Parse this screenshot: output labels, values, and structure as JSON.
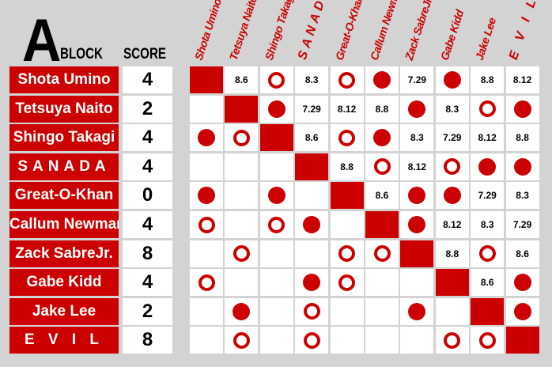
{
  "header": {
    "block_letter": "A",
    "block_label": "BLOCK",
    "score_label": "SCORE"
  },
  "colors": {
    "accent": "#cc0000",
    "background": "#d3d3d3"
  },
  "symbols": {
    "open-circle": "○",
    "filled-circle": "●",
    "diagonal": "■"
  },
  "wrestlers": [
    {
      "name": "Shota Umino",
      "score": "4"
    },
    {
      "name": "Tetsuya Naito",
      "score": "2"
    },
    {
      "name": "Shingo Takagi",
      "score": "4"
    },
    {
      "name": "SANADA",
      "score": "4"
    },
    {
      "name": "Great-O-Khan",
      "score": "0"
    },
    {
      "name": "Callum Newman",
      "score": "4"
    },
    {
      "name": "Zack SabreJr.",
      "score": "8"
    },
    {
      "name": "Gabe Kidd",
      "score": "4"
    },
    {
      "name": "Jake Lee",
      "score": "2"
    },
    {
      "name": "E V I L",
      "score": "8"
    }
  ],
  "grid": [
    [
      "■",
      "8.6",
      "○",
      "8.3",
      "○",
      "●",
      "7.29",
      "●",
      "8.8",
      "8.12"
    ],
    [
      "",
      "■",
      "●",
      "7.29",
      "8.12",
      "8.8",
      "●",
      "8.3",
      "○",
      "●"
    ],
    [
      "●",
      "○",
      "■",
      "8.6",
      "○",
      "●",
      "8.3",
      "7.29",
      "8.12",
      "8.8"
    ],
    [
      "",
      "",
      "",
      "■",
      "8.8",
      "○",
      "8.12",
      "○",
      "●",
      "●"
    ],
    [
      "●",
      "",
      "●",
      "",
      "■",
      "8.6",
      "●",
      "●",
      "7.29",
      "8.3"
    ],
    [
      "○",
      "",
      "○",
      "●",
      "",
      "■",
      "●",
      "8.12",
      "8.3",
      "7.29"
    ],
    [
      "",
      "○",
      "",
      "",
      "○",
      "○",
      "■",
      "8.8",
      "○",
      "8.6"
    ],
    [
      "○",
      "",
      "",
      "●",
      "○",
      "",
      "",
      "■",
      "8.6",
      "●"
    ],
    [
      "",
      "●",
      "",
      "○",
      "",
      "",
      "●",
      "",
      "■",
      "●"
    ],
    [
      "",
      "○",
      "",
      "○",
      "",
      "",
      "",
      "○",
      "○",
      "■"
    ]
  ]
}
